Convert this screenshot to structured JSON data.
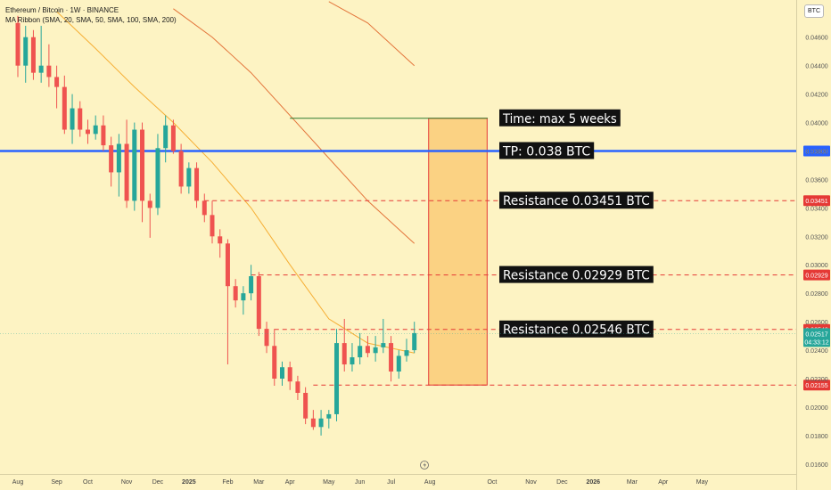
{
  "header": {
    "symbol_line": "Ethereum / Bitcoin · 1W · BINANCE",
    "indicator_name": "MA Ribbon",
    "indicator_params": "(SMA, 20, SMA, 50, SMA, 100, SMA, 200)",
    "currency_button": "BTC"
  },
  "colors": {
    "background": "#fdf3c3",
    "bull": "#26a69a",
    "bear": "#ef5350",
    "tp_line": "#2962ff",
    "resistance": "#e53935",
    "time_line": "#2e7d32",
    "box_fill": "#f9c76e",
    "box_border": "#e53935",
    "ma20": "#f5a623",
    "ma50": "#e0662b"
  },
  "chart_data": {
    "type": "candlestick",
    "price_axis": {
      "ylim": [
        0.0153,
        0.0483
      ],
      "tick_labels": [
        "0.04600",
        "0.04400",
        "0.04200",
        "0.04000",
        "0.03800",
        "0.03600",
        "0.03400",
        "0.03200",
        "0.03000",
        "0.02800",
        "0.02600",
        "0.02400",
        "0.02200",
        "0.02000",
        "0.01800",
        "0.01600"
      ],
      "tick_values": [
        0.046,
        0.044,
        0.042,
        0.04,
        0.038,
        0.036,
        0.034,
        0.032,
        0.03,
        0.028,
        0.026,
        0.024,
        0.022,
        0.02,
        0.018,
        0.016
      ]
    },
    "time_axis": {
      "labels": [
        "Aug",
        "Sep",
        "Oct",
        "Nov",
        "Dec",
        "2025",
        "Feb",
        "Mar",
        "Apr",
        "May",
        "Jun",
        "Jul",
        "Aug",
        "Oct",
        "Nov",
        "Dec",
        "2026",
        "Mar",
        "Apr",
        "May"
      ],
      "label_week_index": [
        0,
        5,
        9,
        14,
        18,
        22,
        27,
        31,
        35,
        40,
        44,
        48,
        53,
        61,
        66,
        70,
        74,
        79,
        83,
        88
      ]
    },
    "candles": [
      {
        "o": 0.047,
        "h": 0.0475,
        "l": 0.0432,
        "c": 0.044
      },
      {
        "o": 0.044,
        "h": 0.0468,
        "l": 0.0428,
        "c": 0.046
      },
      {
        "o": 0.046,
        "h": 0.0465,
        "l": 0.043,
        "c": 0.0435
      },
      {
        "o": 0.0435,
        "h": 0.0468,
        "l": 0.0428,
        "c": 0.044
      },
      {
        "o": 0.044,
        "h": 0.0455,
        "l": 0.0425,
        "c": 0.0432
      },
      {
        "o": 0.0432,
        "h": 0.044,
        "l": 0.041,
        "c": 0.0425
      },
      {
        "o": 0.0425,
        "h": 0.0433,
        "l": 0.0392,
        "c": 0.0395
      },
      {
        "o": 0.0395,
        "h": 0.042,
        "l": 0.0385,
        "c": 0.041
      },
      {
        "o": 0.041,
        "h": 0.0415,
        "l": 0.039,
        "c": 0.0395
      },
      {
        "o": 0.0395,
        "h": 0.0402,
        "l": 0.0385,
        "c": 0.0392
      },
      {
        "o": 0.0392,
        "h": 0.0405,
        "l": 0.0388,
        "c": 0.0398
      },
      {
        "o": 0.0398,
        "h": 0.0405,
        "l": 0.038,
        "c": 0.0384
      },
      {
        "o": 0.0384,
        "h": 0.039,
        "l": 0.0355,
        "c": 0.0365
      },
      {
        "o": 0.0365,
        "h": 0.0392,
        "l": 0.0348,
        "c": 0.0385
      },
      {
        "o": 0.0385,
        "h": 0.0402,
        "l": 0.034,
        "c": 0.0345
      },
      {
        "o": 0.0345,
        "h": 0.04,
        "l": 0.0338,
        "c": 0.0395
      },
      {
        "o": 0.0395,
        "h": 0.04,
        "l": 0.033,
        "c": 0.0345
      },
      {
        "o": 0.0345,
        "h": 0.035,
        "l": 0.0319,
        "c": 0.034
      },
      {
        "o": 0.034,
        "h": 0.0392,
        "l": 0.0335,
        "c": 0.0382
      },
      {
        "o": 0.0382,
        "h": 0.0405,
        "l": 0.0372,
        "c": 0.0398
      },
      {
        "o": 0.0398,
        "h": 0.0402,
        "l": 0.0378,
        "c": 0.038
      },
      {
        "o": 0.038,
        "h": 0.0385,
        "l": 0.035,
        "c": 0.0355
      },
      {
        "o": 0.0355,
        "h": 0.0372,
        "l": 0.035,
        "c": 0.0368
      },
      {
        "o": 0.0368,
        "h": 0.0372,
        "l": 0.034,
        "c": 0.0345
      },
      {
        "o": 0.0345,
        "h": 0.035,
        "l": 0.033,
        "c": 0.0335
      },
      {
        "o": 0.0335,
        "h": 0.0345,
        "l": 0.0315,
        "c": 0.032
      },
      {
        "o": 0.032,
        "h": 0.0325,
        "l": 0.0305,
        "c": 0.0315
      },
      {
        "o": 0.0315,
        "h": 0.0318,
        "l": 0.023,
        "c": 0.0285
      },
      {
        "o": 0.0285,
        "h": 0.029,
        "l": 0.027,
        "c": 0.0275
      },
      {
        "o": 0.0275,
        "h": 0.0285,
        "l": 0.0265,
        "c": 0.028
      },
      {
        "o": 0.028,
        "h": 0.03,
        "l": 0.0275,
        "c": 0.0292
      },
      {
        "o": 0.0292,
        "h": 0.0295,
        "l": 0.025,
        "c": 0.0255
      },
      {
        "o": 0.0255,
        "h": 0.026,
        "l": 0.0238,
        "c": 0.0243
      },
      {
        "o": 0.0243,
        "h": 0.0255,
        "l": 0.0215,
        "c": 0.022
      },
      {
        "o": 0.022,
        "h": 0.0232,
        "l": 0.0215,
        "c": 0.0228
      },
      {
        "o": 0.0228,
        "h": 0.0232,
        "l": 0.0212,
        "c": 0.0218
      },
      {
        "o": 0.0218,
        "h": 0.0222,
        "l": 0.0205,
        "c": 0.021
      },
      {
        "o": 0.021,
        "h": 0.0214,
        "l": 0.0188,
        "c": 0.0192
      },
      {
        "o": 0.0192,
        "h": 0.0198,
        "l": 0.0184,
        "c": 0.0186
      },
      {
        "o": 0.0186,
        "h": 0.0198,
        "l": 0.018,
        "c": 0.0192
      },
      {
        "o": 0.0192,
        "h": 0.0198,
        "l": 0.0185,
        "c": 0.0195
      },
      {
        "o": 0.0195,
        "h": 0.0255,
        "l": 0.019,
        "c": 0.0245
      },
      {
        "o": 0.0245,
        "h": 0.0262,
        "l": 0.0225,
        "c": 0.023
      },
      {
        "o": 0.023,
        "h": 0.0245,
        "l": 0.0225,
        "c": 0.0235
      },
      {
        "o": 0.0235,
        "h": 0.0252,
        "l": 0.023,
        "c": 0.0243
      },
      {
        "o": 0.0243,
        "h": 0.025,
        "l": 0.0235,
        "c": 0.0238
      },
      {
        "o": 0.0238,
        "h": 0.025,
        "l": 0.0232,
        "c": 0.0242
      },
      {
        "o": 0.0242,
        "h": 0.0262,
        "l": 0.0238,
        "c": 0.0245
      },
      {
        "o": 0.0245,
        "h": 0.025,
        "l": 0.0218,
        "c": 0.0225
      },
      {
        "o": 0.0225,
        "h": 0.024,
        "l": 0.022,
        "c": 0.0236
      },
      {
        "o": 0.0236,
        "h": 0.0248,
        "l": 0.0232,
        "c": 0.024
      },
      {
        "o": 0.024,
        "h": 0.026,
        "l": 0.0238,
        "c": 0.0252
      }
    ],
    "moving_averages": [
      {
        "name": "MA20",
        "points": [
          [
            5,
            0.0478
          ],
          [
            10,
            0.0452
          ],
          [
            15,
            0.0425
          ],
          [
            20,
            0.04
          ],
          [
            25,
            0.0372
          ],
          [
            30,
            0.034
          ],
          [
            35,
            0.03
          ],
          [
            40,
            0.0262
          ],
          [
            45,
            0.0245
          ],
          [
            51,
            0.0238
          ]
        ]
      },
      {
        "name": "MA50",
        "points": [
          [
            20,
            0.048
          ],
          [
            25,
            0.046
          ],
          [
            30,
            0.0435
          ],
          [
            35,
            0.0405
          ],
          [
            40,
            0.0375
          ],
          [
            45,
            0.0345
          ],
          [
            51,
            0.0315
          ]
        ]
      },
      {
        "name": "MA100",
        "points": [
          [
            40,
            0.0485
          ],
          [
            45,
            0.047
          ],
          [
            51,
            0.044
          ]
        ]
      }
    ],
    "annotations": [
      {
        "type": "hline",
        "label": "TP: 0.038 BTC",
        "value": 0.038,
        "style": "solid",
        "axis_tag": "0.03800",
        "from_week": 0
      },
      {
        "type": "hline",
        "label": "Resistance 0.03451 BTC",
        "value": 0.03451,
        "style": "dashed",
        "axis_tag": "0.03451",
        "from_week": 24
      },
      {
        "type": "hline",
        "label": "Resistance 0.02929 BTC",
        "value": 0.02929,
        "style": "dashed",
        "axis_tag": "0.02929",
        "from_week": 30
      },
      {
        "type": "hline",
        "label": "Resistance 0.02546 BTC",
        "value": 0.02546,
        "style": "dashed",
        "axis_tag": "0.02546",
        "from_week": 33
      },
      {
        "type": "hline",
        "label": "",
        "value": 0.02155,
        "style": "dashed",
        "axis_tag": "0.02155",
        "from_week": 38
      },
      {
        "type": "hline",
        "label": "Time: max 5 weeks",
        "value": 0.0403,
        "style": "solid",
        "axis_tag": "",
        "from_week": 35,
        "to_week": 57
      }
    ],
    "target_box": {
      "from_week": 51,
      "to_week": 56,
      "top": 0.0403,
      "bottom": 0.02155
    },
    "last_price": {
      "value": 0.02517,
      "label": "0.02517",
      "countdown": "04:33:12"
    }
  }
}
